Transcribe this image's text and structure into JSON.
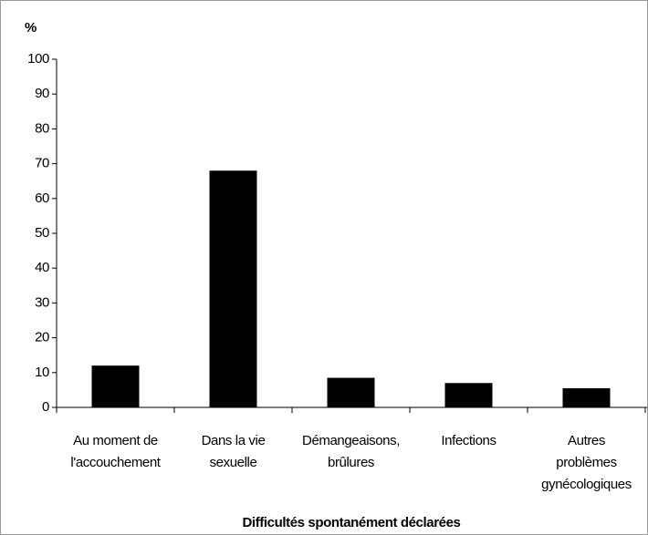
{
  "chart_data": {
    "type": "bar",
    "ylabel": "%",
    "xlabel": "Difficultés spontanément déclarées",
    "categories": [
      [
        "Au moment de",
        "l'accouchement"
      ],
      [
        "Dans la vie",
        "sexuelle"
      ],
      [
        "Démangeaisons,",
        "brûlures"
      ],
      [
        "Infections"
      ],
      [
        "Autres",
        "problèmes",
        "gynécologiques"
      ]
    ],
    "values": [
      12,
      68,
      8.5,
      7,
      5.5
    ],
    "color": "#000000",
    "ylim": [
      0,
      100
    ],
    "yticks": [
      0,
      10,
      20,
      30,
      40,
      50,
      60,
      70,
      80,
      90,
      100
    ],
    "grid": false
  }
}
